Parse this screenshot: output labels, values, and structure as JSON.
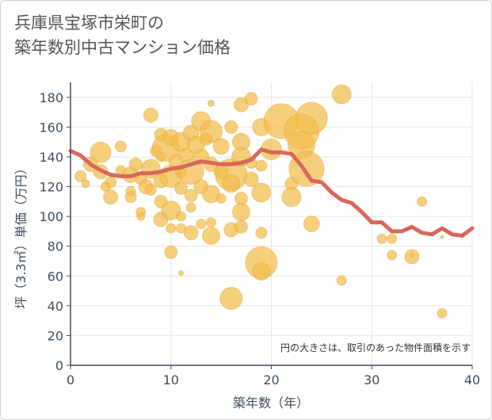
{
  "title": {
    "line1": "兵庫県宝塚市栄町の",
    "line2": "築年数別中古マンション価格"
  },
  "chart_data": {
    "type": "scatter",
    "xlabel": "築年数（年）",
    "ylabel": "坪（3.3㎡）単価（万円）",
    "xlim": [
      0,
      40
    ],
    "ylim": [
      0,
      190
    ],
    "xticks": [
      0,
      10,
      20,
      30,
      40
    ],
    "yticks": [
      0,
      20,
      40,
      60,
      80,
      100,
      120,
      140,
      160,
      180
    ],
    "grid": true,
    "note": "円の大きさは、取引のあった物件面積を示す",
    "colors": {
      "bubble": "#f3bc4b",
      "line": "#d9685a",
      "grid": "#e6e6e6",
      "axis": "#3d4f5f"
    },
    "series": [
      {
        "kind": "bubbles",
        "points": [
          {
            "x": 1,
            "y": 127,
            "s": 7
          },
          {
            "x": 1.5,
            "y": 122,
            "s": 5
          },
          {
            "x": 2,
            "y": 135,
            "s": 9
          },
          {
            "x": 3,
            "y": 143,
            "s": 13
          },
          {
            "x": 3,
            "y": 130,
            "s": 9
          },
          {
            "x": 3.5,
            "y": 120,
            "s": 6
          },
          {
            "x": 4,
            "y": 113,
            "s": 9
          },
          {
            "x": 4,
            "y": 123,
            "s": 7
          },
          {
            "x": 5,
            "y": 147,
            "s": 7
          },
          {
            "x": 5,
            "y": 131,
            "s": 6
          },
          {
            "x": 6,
            "y": 128,
            "s": 10
          },
          {
            "x": 6,
            "y": 117,
            "s": 6
          },
          {
            "x": 6,
            "y": 113,
            "s": 7
          },
          {
            "x": 6.5,
            "y": 135,
            "s": 8
          },
          {
            "x": 7,
            "y": 125,
            "s": 7
          },
          {
            "x": 7,
            "y": 103,
            "s": 6
          },
          {
            "x": 7,
            "y": 100,
            "s": 5
          },
          {
            "x": 7.5,
            "y": 120,
            "s": 9
          },
          {
            "x": 8,
            "y": 168,
            "s": 9
          },
          {
            "x": 8,
            "y": 132,
            "s": 12
          },
          {
            "x": 8,
            "y": 118,
            "s": 7
          },
          {
            "x": 8.5,
            "y": 144,
            "s": 7
          },
          {
            "x": 9,
            "y": 155,
            "s": 8
          },
          {
            "x": 9,
            "y": 140,
            "s": 6
          },
          {
            "x": 9,
            "y": 124,
            "s": 9
          },
          {
            "x": 9,
            "y": 110,
            "s": 8
          },
          {
            "x": 9,
            "y": 98,
            "s": 9
          },
          {
            "x": 9.5,
            "y": 146,
            "s": 17
          },
          {
            "x": 10,
            "y": 153,
            "s": 10
          },
          {
            "x": 10,
            "y": 127,
            "s": 14
          },
          {
            "x": 10,
            "y": 104,
            "s": 12
          },
          {
            "x": 10,
            "y": 92,
            "s": 6
          },
          {
            "x": 10,
            "y": 76,
            "s": 8
          },
          {
            "x": 10.5,
            "y": 137,
            "s": 9
          },
          {
            "x": 11,
            "y": 150,
            "s": 12
          },
          {
            "x": 11,
            "y": 130,
            "s": 7
          },
          {
            "x": 11,
            "y": 119,
            "s": 8
          },
          {
            "x": 11,
            "y": 100,
            "s": 6
          },
          {
            "x": 11,
            "y": 92,
            "s": 6
          },
          {
            "x": 11,
            "y": 62,
            "s": 3
          },
          {
            "x": 11.5,
            "y": 141,
            "s": 9
          },
          {
            "x": 12,
            "y": 156,
            "s": 10
          },
          {
            "x": 12,
            "y": 130,
            "s": 16
          },
          {
            "x": 12,
            "y": 114,
            "s": 8
          },
          {
            "x": 12,
            "y": 106,
            "s": 6
          },
          {
            "x": 12,
            "y": 89,
            "s": 9
          },
          {
            "x": 12.5,
            "y": 148,
            "s": 11
          },
          {
            "x": 13,
            "y": 164,
            "s": 12
          },
          {
            "x": 13,
            "y": 140,
            "s": 10
          },
          {
            "x": 13,
            "y": 120,
            "s": 9
          },
          {
            "x": 13,
            "y": 95,
            "s": 6
          },
          {
            "x": 13.5,
            "y": 152,
            "s": 8
          },
          {
            "x": 14,
            "y": 176,
            "s": 4
          },
          {
            "x": 14,
            "y": 157,
            "s": 14
          },
          {
            "x": 14,
            "y": 135,
            "s": 9
          },
          {
            "x": 14,
            "y": 115,
            "s": 11
          },
          {
            "x": 14,
            "y": 96,
            "s": 6
          },
          {
            "x": 14,
            "y": 87,
            "s": 11
          },
          {
            "x": 15,
            "y": 147,
            "s": 10
          },
          {
            "x": 15,
            "y": 130,
            "s": 9
          },
          {
            "x": 15,
            "y": 112,
            "s": 6
          },
          {
            "x": 16,
            "y": 160,
            "s": 8
          },
          {
            "x": 16,
            "y": 128,
            "s": 20
          },
          {
            "x": 16,
            "y": 122,
            "s": 11
          },
          {
            "x": 16,
            "y": 91,
            "s": 9
          },
          {
            "x": 16,
            "y": 45,
            "s": 14
          },
          {
            "x": 17,
            "y": 175,
            "s": 9
          },
          {
            "x": 17,
            "y": 150,
            "s": 11
          },
          {
            "x": 17,
            "y": 140,
            "s": 12
          },
          {
            "x": 17,
            "y": 112,
            "s": 8
          },
          {
            "x": 17,
            "y": 103,
            "s": 11
          },
          {
            "x": 17,
            "y": 93,
            "s": 8
          },
          {
            "x": 18,
            "y": 179,
            "s": 8
          },
          {
            "x": 18,
            "y": 136,
            "s": 7
          },
          {
            "x": 18,
            "y": 125,
            "s": 9
          },
          {
            "x": 19,
            "y": 160,
            "s": 11
          },
          {
            "x": 19,
            "y": 134,
            "s": 7
          },
          {
            "x": 19,
            "y": 116,
            "s": 12
          },
          {
            "x": 19,
            "y": 89,
            "s": 7
          },
          {
            "x": 19,
            "y": 69,
            "s": 20
          },
          {
            "x": 19,
            "y": 63,
            "s": 11
          },
          {
            "x": 20,
            "y": 145,
            "s": 13
          },
          {
            "x": 21,
            "y": 164,
            "s": 22
          },
          {
            "x": 22,
            "y": 122,
            "s": 8
          },
          {
            "x": 22,
            "y": 113,
            "s": 12
          },
          {
            "x": 23,
            "y": 157,
            "s": 22
          },
          {
            "x": 23,
            "y": 148,
            "s": 17
          },
          {
            "x": 23.5,
            "y": 132,
            "s": 22
          },
          {
            "x": 24,
            "y": 166,
            "s": 20
          },
          {
            "x": 24,
            "y": 95,
            "s": 10
          },
          {
            "x": 27,
            "y": 182,
            "s": 12
          },
          {
            "x": 27,
            "y": 57,
            "s": 6
          },
          {
            "x": 31,
            "y": 85,
            "s": 6
          },
          {
            "x": 32,
            "y": 85,
            "s": 6
          },
          {
            "x": 32,
            "y": 74,
            "s": 6
          },
          {
            "x": 34,
            "y": 73,
            "s": 9
          },
          {
            "x": 34,
            "y": 74,
            "s": 3
          },
          {
            "x": 35,
            "y": 110,
            "s": 6
          },
          {
            "x": 37,
            "y": 86,
            "s": 2
          },
          {
            "x": 37,
            "y": 35,
            "s": 6
          }
        ]
      },
      {
        "kind": "line",
        "x": [
          0,
          1,
          2,
          3,
          4,
          5,
          6,
          7,
          8,
          9,
          10,
          11,
          12,
          13,
          14,
          15,
          16,
          17,
          18,
          19,
          20,
          21,
          22,
          23,
          24,
          25,
          26,
          27,
          28,
          29,
          30,
          31,
          32,
          33,
          34,
          35,
          36,
          37,
          38,
          39,
          40
        ],
        "y": [
          144,
          141,
          135,
          131,
          128,
          127,
          127,
          129,
          129,
          130,
          132,
          133,
          135,
          137,
          136,
          135,
          135,
          136,
          138,
          145,
          143,
          143,
          142,
          134,
          124,
          123,
          116,
          111,
          109,
          103,
          96,
          96,
          90,
          90,
          93,
          89,
          88,
          92,
          88,
          87,
          92
        ]
      }
    ]
  }
}
